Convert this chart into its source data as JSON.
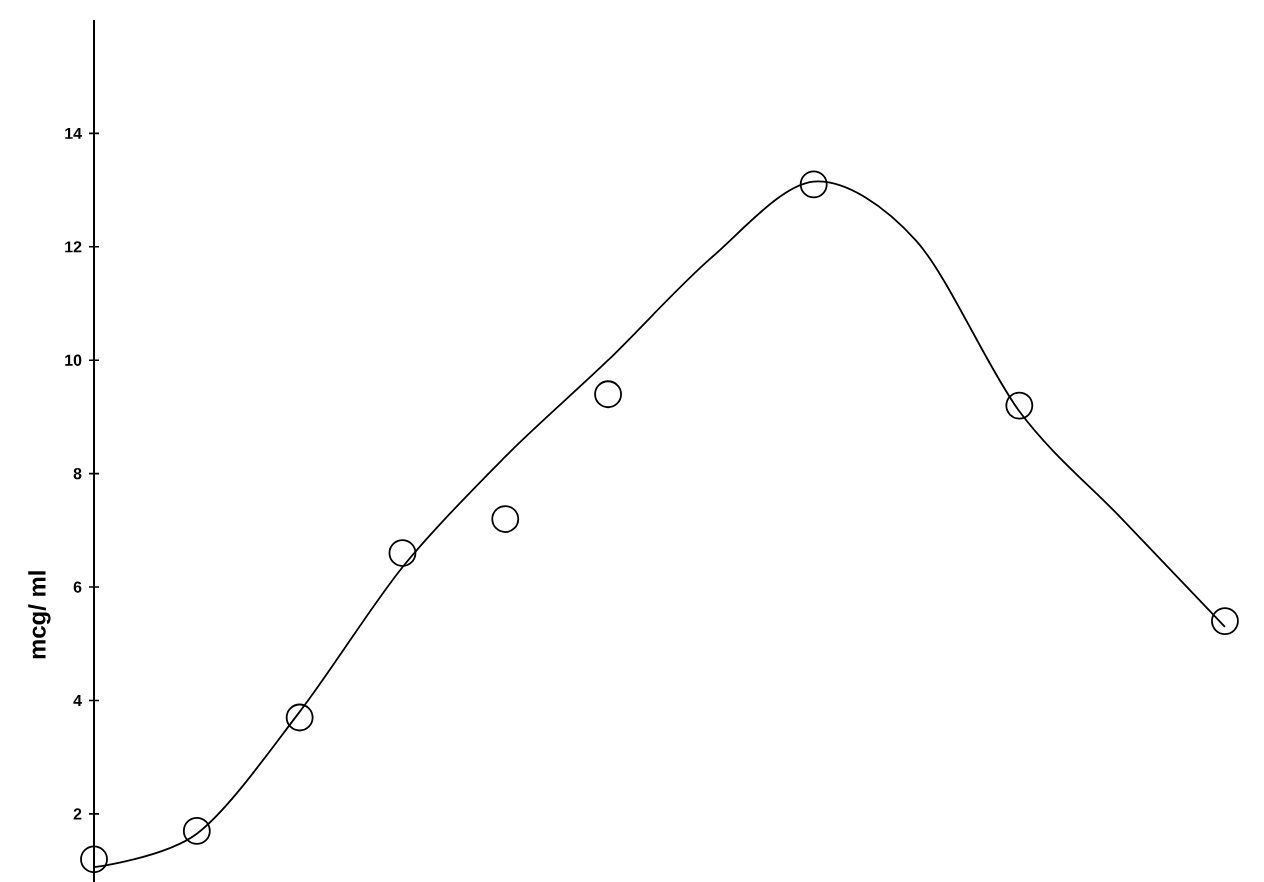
{
  "chart_data": {
    "type": "scatter",
    "ylabel": "mcg/ ml",
    "categories": [
      null,
      null,
      null,
      null,
      null,
      null,
      null,
      null,
      null,
      null,
      null,
      null
    ],
    "series": [
      {
        "color": "#000000",
        "marker": "circle",
        "values": [
          1.2,
          1.7,
          3.7,
          6.6,
          7.2,
          9.4,
          null,
          13.1,
          null,
          9.2,
          null,
          5.4
        ]
      },
      {
        "type": "line",
        "color": "#000000",
        "marker": "none",
        "line_style": "solid",
        "values": [
          1.06,
          1.65,
          3.8,
          6.35,
          8.3,
          10.0,
          11.8,
          13.15,
          12.1,
          9.1,
          7.2,
          5.3
        ]
      }
    ],
    "ylim": [
      0.8,
      16
    ],
    "yticks": [
      2,
      4,
      6,
      8,
      10,
      12,
      14
    ],
    "tick_labels": "y",
    "grid": false
  }
}
